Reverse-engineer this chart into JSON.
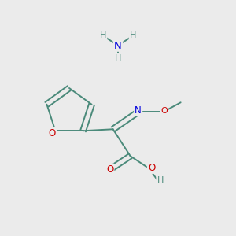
{
  "background_color": "#ebebeb",
  "bond_color": "#4a8a7a",
  "bond_width": 1.4,
  "atom_colors": {
    "N": "#0000dd",
    "O": "#cc0000",
    "H": "#4a8a7a",
    "C": "#4a8a7a"
  },
  "font_size_atom": 8.5,
  "font_size_H": 8.0,
  "figsize": [
    3.0,
    3.0
  ],
  "dpi": 100
}
